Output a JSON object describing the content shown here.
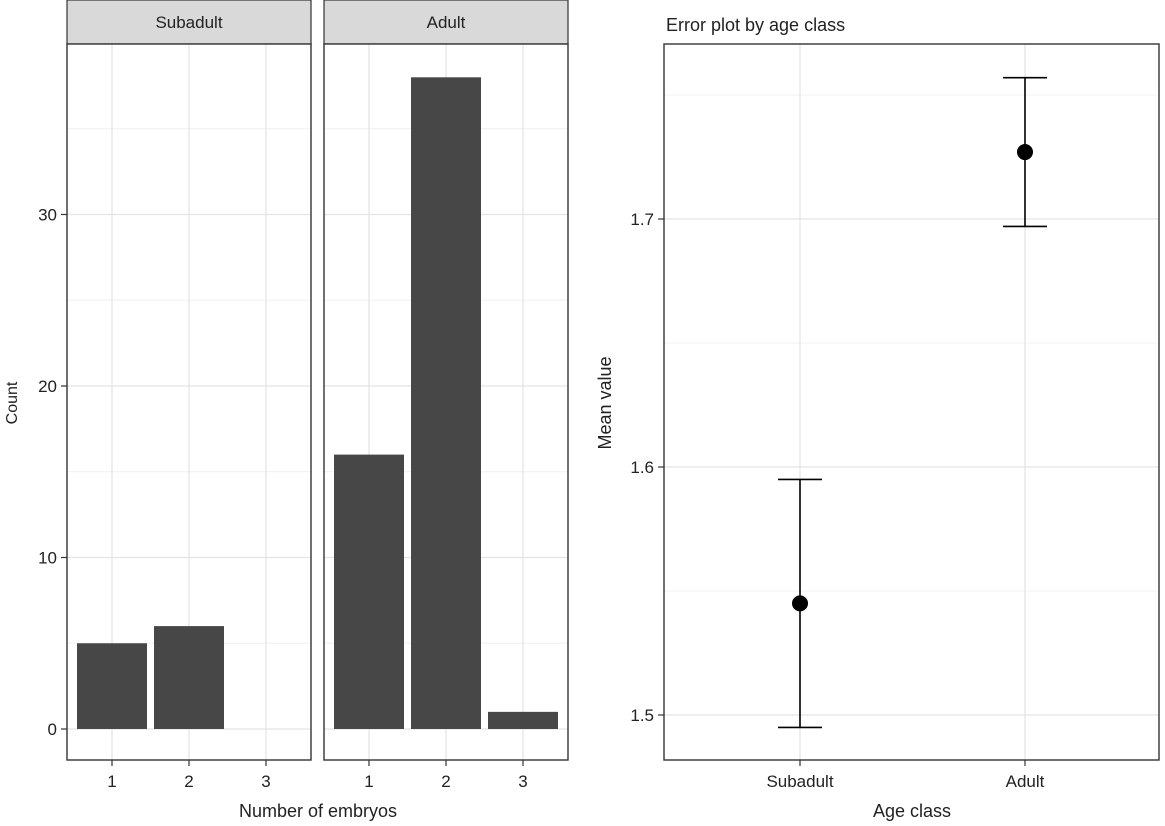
{
  "chart_data": [
    {
      "type": "bar",
      "xlabel": "Number of embryos",
      "ylabel": "Count",
      "categories": [
        "1",
        "2",
        "3"
      ],
      "yticks": [
        0,
        10,
        20,
        30
      ],
      "ylim": [
        0,
        40
      ],
      "grid": true,
      "facets": [
        {
          "name": "Subadult",
          "values": [
            5,
            6,
            0
          ]
        },
        {
          "name": "Adult",
          "values": [
            16,
            38,
            1
          ]
        }
      ],
      "bar_color": "#474747",
      "strip_color": "#d9d9d9"
    },
    {
      "type": "errorbar",
      "title": "Error plot by age class",
      "xlabel": "Age class",
      "ylabel": "Mean value",
      "categories": [
        "Subadult",
        "Adult"
      ],
      "means": [
        1.545,
        1.727
      ],
      "lower": [
        1.495,
        1.697
      ],
      "upper": [
        1.595,
        1.757
      ],
      "ylim": [
        1.48,
        1.77
      ],
      "yticks": [
        "1.5",
        "1.6",
        "1.7"
      ],
      "grid": true,
      "point_color": "#000000"
    }
  ]
}
